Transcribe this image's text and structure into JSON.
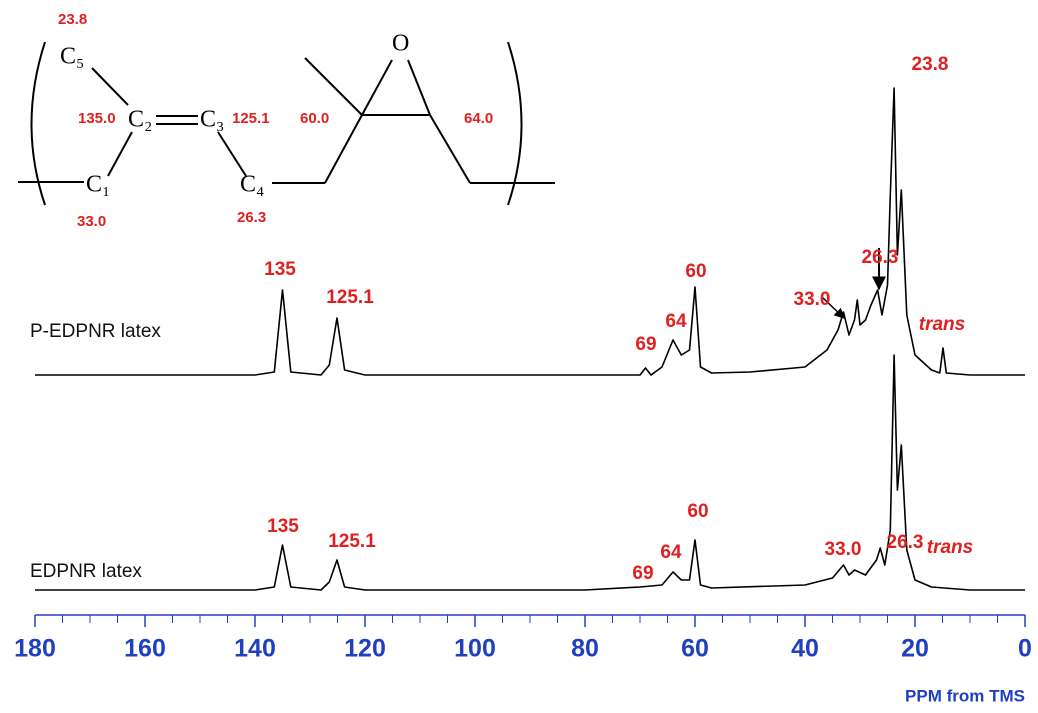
{
  "chart_data": {
    "type": "line",
    "xlabel": "PPM from TMS",
    "xlim": [
      180,
      0
    ],
    "xticks": [
      180,
      160,
      140,
      120,
      100,
      80,
      60,
      40,
      20,
      0
    ],
    "xminorticks": [
      175,
      170,
      165,
      155,
      150,
      145,
      135,
      130,
      125,
      115,
      110,
      105,
      95,
      90,
      85,
      75,
      70,
      65,
      55,
      50,
      45,
      35,
      30,
      25,
      15,
      10,
      5
    ],
    "series": [
      {
        "name": "P-EDPNR latex",
        "color": "#000000",
        "x": [
          180,
          140,
          136.5,
          135,
          133.5,
          128,
          126.5,
          125.1,
          123.7,
          120,
          80,
          70,
          69,
          68,
          66,
          64,
          62.5,
          61,
          60,
          59,
          57,
          50,
          40,
          36,
          34,
          33,
          32,
          31,
          30.5,
          30,
          29,
          28,
          26.8,
          26,
          25,
          24.5,
          23.8,
          23.2,
          22.5,
          21.5,
          20,
          17,
          15.5,
          14.9,
          14.3,
          10,
          0
        ],
        "values": [
          0,
          0,
          3,
          85,
          3,
          0,
          10,
          57,
          5,
          0,
          0,
          0,
          7,
          0,
          8,
          35,
          20,
          25,
          88,
          8,
          2,
          3,
          8,
          25,
          45,
          63,
          40,
          55,
          75,
          50,
          55,
          70,
          85,
          60,
          90,
          180,
          287,
          120,
          185,
          60,
          20,
          5,
          2,
          27,
          2,
          0,
          0
        ],
        "annotations": [
          "135",
          "125.1",
          "69",
          "64",
          "60",
          "33.0",
          "26.3",
          "23.8",
          "trans"
        ]
      },
      {
        "name": "EDPNR latex",
        "color": "#000000",
        "x": [
          180,
          140,
          136.5,
          135,
          133.5,
          128,
          126.5,
          125.1,
          123.7,
          120,
          80,
          70,
          66,
          64,
          62.5,
          61,
          60,
          59,
          57,
          40,
          35,
          33,
          32,
          31,
          29,
          27,
          26.3,
          25.5,
          24.5,
          23.8,
          23.2,
          22.5,
          21.5,
          20,
          17,
          10,
          0
        ],
        "values": [
          0,
          0,
          3,
          45,
          3,
          0,
          8,
          30,
          3,
          0,
          0,
          3,
          5,
          18,
          10,
          10,
          50,
          5,
          2,
          5,
          12,
          25,
          15,
          20,
          15,
          30,
          42,
          25,
          60,
          235,
          100,
          145,
          40,
          10,
          3,
          0,
          0
        ],
        "annotations": [
          "135",
          "125.1",
          "69",
          "64",
          "60",
          "33.0",
          "26.3",
          "trans"
        ]
      }
    ]
  },
  "structure": {
    "atoms": [
      "C₅",
      "C₂",
      "C₃",
      "C₁",
      "C₄",
      "O"
    ],
    "shifts": [
      "23.8",
      "135.0",
      "125.1",
      "60.0",
      "64.0",
      "33.0",
      "26.3"
    ]
  }
}
